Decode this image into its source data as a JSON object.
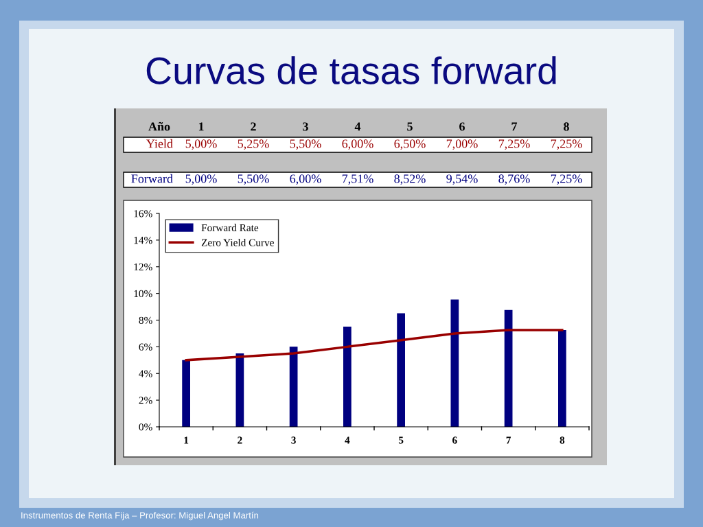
{
  "chart_data": {
    "type": "bar",
    "title": "Curvas de tasas forward",
    "categories": [
      "1",
      "2",
      "3",
      "4",
      "5",
      "6",
      "7",
      "8"
    ],
    "series": [
      {
        "name": "Forward Rate",
        "color": "#000080",
        "values": [
          5.0,
          5.5,
          6.0,
          7.51,
          8.52,
          9.54,
          8.76,
          7.25
        ],
        "value_labels": [
          "5,00%",
          "5,50%",
          "6,00%",
          "7,51%",
          "8,52%",
          "9,54%",
          "8,76%",
          "7,25%"
        ]
      },
      {
        "name": "Zero Yield Curve",
        "type": "line",
        "color": "#990000",
        "values": [
          5.0,
          5.25,
          5.5,
          6.0,
          6.5,
          7.0,
          7.25,
          7.25
        ],
        "value_labels": [
          "5,00%",
          "5,25%",
          "5,50%",
          "6,00%",
          "6,50%",
          "7,00%",
          "7,25%",
          "7,25%"
        ]
      }
    ],
    "ylim": [
      0,
      16
    ],
    "yticks": [
      {
        "value": 0,
        "label": "0%"
      },
      {
        "value": 2,
        "label": "2%"
      },
      {
        "value": 4,
        "label": "4%"
      },
      {
        "value": 6,
        "label": "6%"
      },
      {
        "value": 8,
        "label": "8%"
      },
      {
        "value": 10,
        "label": "10%"
      },
      {
        "value": 12,
        "label": "12%"
      },
      {
        "value": 14,
        "label": "14%"
      },
      {
        "value": 16,
        "label": "16%"
      }
    ],
    "grid": false,
    "legend": "top left",
    "marker": "none",
    "line_style": "solid",
    "annotations": [
      "Año",
      "Yield",
      "Forward",
      "Instrumentos de Renta Fija – Profesor: Miguel Angel Martín"
    ]
  }
}
